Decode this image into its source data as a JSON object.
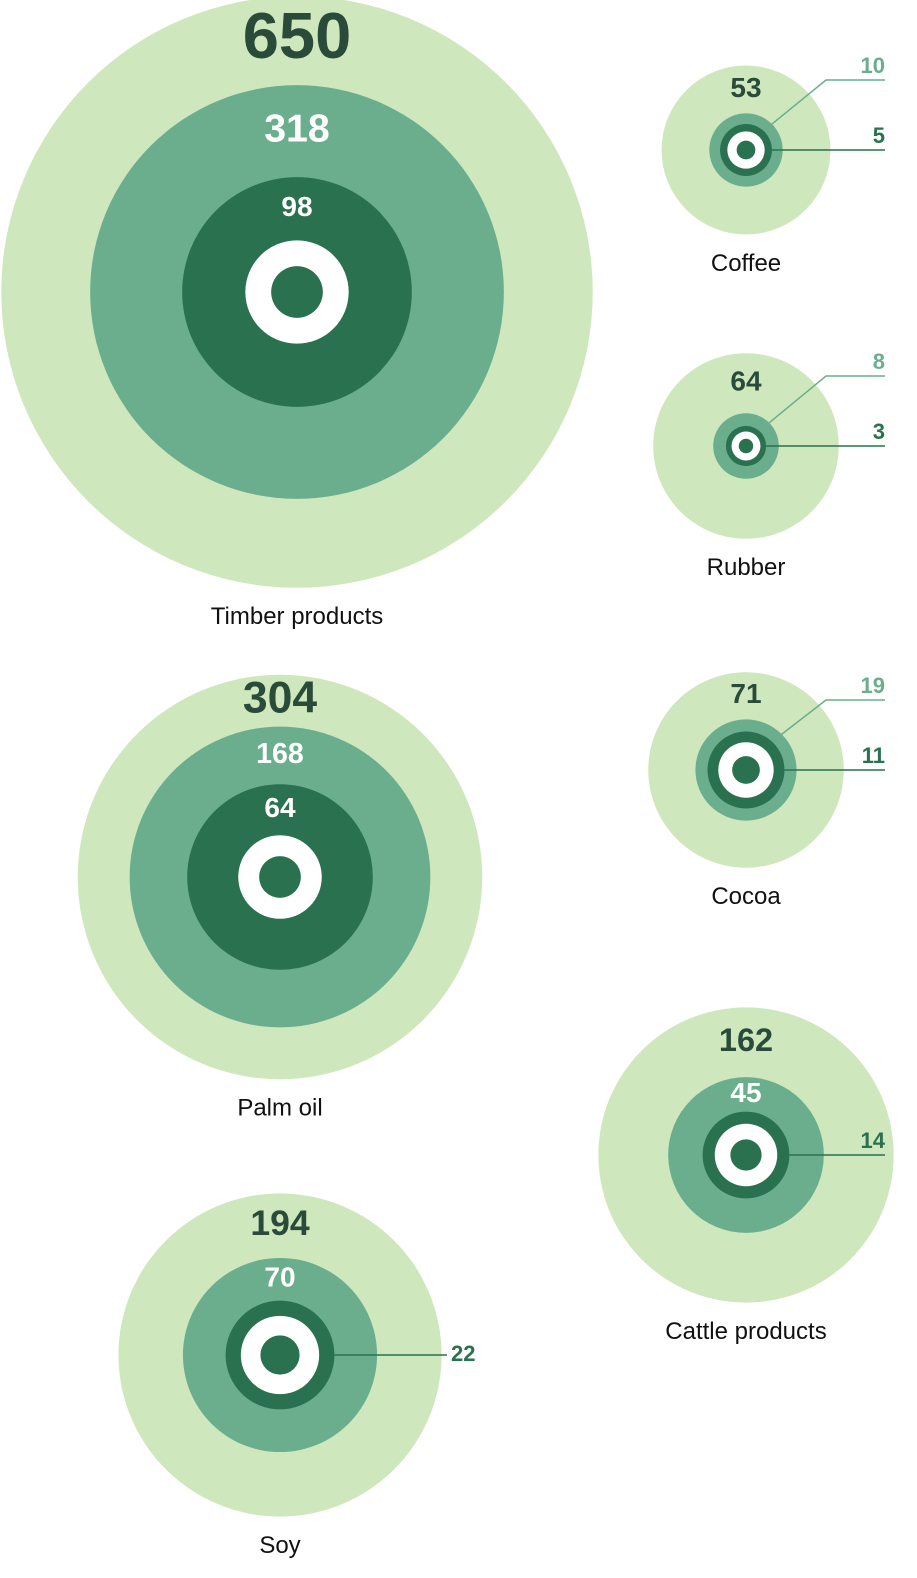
{
  "chart_data": {
    "type": "nested-bubble",
    "colors": [
      "#cfe7bd",
      "#6aae8e",
      "#2a7150"
    ],
    "items": [
      {
        "label": "Timber products",
        "values": [
          650,
          318,
          98
        ]
      },
      {
        "label": "Palm oil",
        "values": [
          304,
          168,
          64
        ]
      },
      {
        "label": "Soy",
        "values": [
          194,
          70,
          22
        ]
      },
      {
        "label": "Coffee",
        "values": [
          53,
          10,
          5
        ]
      },
      {
        "label": "Rubber",
        "values": [
          64,
          8,
          3
        ]
      },
      {
        "label": "Cocoa",
        "values": [
          71,
          19,
          11
        ]
      },
      {
        "label": "Cattle products",
        "values": [
          162,
          45,
          14
        ]
      }
    ]
  }
}
